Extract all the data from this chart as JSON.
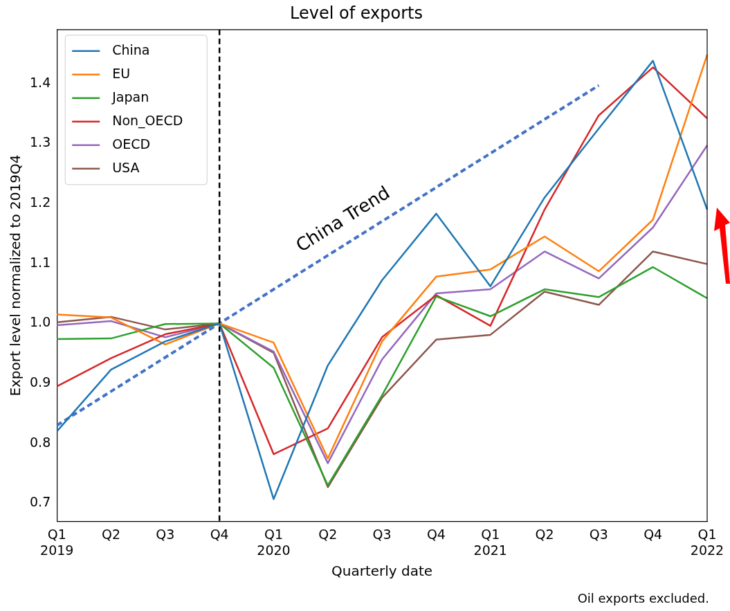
{
  "chart_data": {
    "type": "line",
    "title": "Level of exports",
    "xlabel": "Quarterly date",
    "ylabel": "Export level normalized to 2019Q4",
    "categories": [
      "Q1\n2019",
      "Q2",
      "Q3",
      "Q4",
      "Q1\n2020",
      "Q2",
      "Q3",
      "Q4",
      "Q1\n2021",
      "Q2",
      "Q3",
      "Q4",
      "Q1\n2022"
    ],
    "series": [
      {
        "name": "China",
        "color": "#1f77b4",
        "values": [
          0.82,
          0.923,
          0.97,
          1.0,
          0.707,
          0.93,
          1.072,
          1.183,
          1.062,
          1.21,
          1.325,
          1.438,
          1.19
        ]
      },
      {
        "name": "EU",
        "color": "#ff7f0e",
        "values": [
          1.015,
          1.01,
          0.965,
          1.0,
          0.968,
          0.775,
          0.97,
          1.078,
          1.09,
          1.145,
          1.087,
          1.173,
          1.448
        ]
      },
      {
        "name": "Japan",
        "color": "#2ca02c",
        "values": [
          0.974,
          0.975,
          0.999,
          1.0,
          0.926,
          0.73,
          0.88,
          1.045,
          1.012,
          1.057,
          1.044,
          1.094,
          1.042
        ]
      },
      {
        "name": "Non_OECD",
        "color": "#d62728",
        "values": [
          0.895,
          0.942,
          0.982,
          1.0,
          0.782,
          0.825,
          0.977,
          1.047,
          0.996,
          1.19,
          1.347,
          1.427,
          1.342
        ]
      },
      {
        "name": "OECD",
        "color": "#9467bd",
        "values": [
          0.997,
          1.004,
          0.977,
          1.0,
          0.953,
          0.767,
          0.94,
          1.05,
          1.057,
          1.12,
          1.075,
          1.16,
          1.297
        ]
      },
      {
        "name": "USA",
        "color": "#8c564b",
        "values": [
          1.002,
          1.011,
          0.99,
          1.0,
          0.951,
          0.727,
          0.876,
          0.973,
          0.981,
          1.053,
          1.031,
          1.12,
          1.099
        ]
      },
      {
        "name": "China Trend",
        "color": "#4472c4",
        "line_style": "dashed",
        "values": [
          0.83,
          null,
          null,
          null,
          null,
          null,
          null,
          null,
          null,
          null,
          1.397,
          null,
          null
        ]
      }
    ],
    "ylim": [
      0.67,
      1.49
    ],
    "yticks": [
      0.7,
      0.8,
      0.9,
      {
        "value": 1.0,
        "label": "1.0"
      },
      1.1,
      1.2,
      1.3,
      1.4
    ],
    "ref_lines": [
      {
        "axis": "x",
        "value": "Q4",
        "color": "#000000",
        "line_style": "dashed"
      }
    ],
    "annotations": [
      "Oil exports excluded."
    ],
    "legend": "top left",
    "grid": false,
    "marker": "none"
  }
}
